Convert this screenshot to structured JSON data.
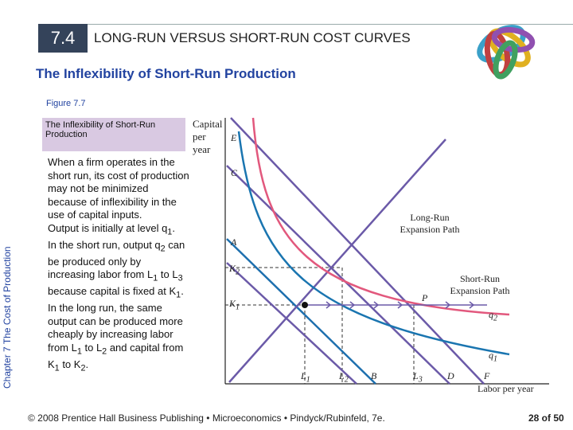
{
  "header": {
    "section": "7.4",
    "title": "LONG-RUN VERSUS SHORT-RUN COST CURVES"
  },
  "subtitle": "The Inflexibility of Short-Run Production",
  "side_label": "Chapter 7  The Cost of Production",
  "figure": {
    "label": "Figure 7.7",
    "caption": "The Inflexibility of Short-Run Production",
    "body": [
      [
        {
          "text": "When a firm operates in the short run, its cost of production may not be minimized because of inflexibility in the use of capital inputs."
        }
      ],
      [
        {
          "text": "Output is initially at level q"
        },
        {
          "sub": "1"
        },
        {
          "text": "."
        }
      ],
      [
        {
          "text": "In the short run, output q"
        },
        {
          "sub": "2"
        },
        {
          "text": " can be produced only by increasing labor from L"
        },
        {
          "sub": "1"
        },
        {
          "text": " to L"
        },
        {
          "sub": "3"
        },
        {
          "text": " because capital is fixed at K"
        },
        {
          "sub": "1"
        },
        {
          "text": "."
        }
      ],
      [
        {
          "text": "In the long run, the same output can be produced more cheaply by increasing labor from L"
        },
        {
          "sub": "1"
        },
        {
          "text": " to L"
        },
        {
          "sub": "2"
        },
        {
          "text": " and capital from K"
        },
        {
          "sub": "1"
        },
        {
          "text": " to K"
        },
        {
          "sub": "2"
        },
        {
          "text": "."
        }
      ]
    ],
    "diagram": {
      "y_axis": "Capital per year",
      "x_axis": "Labor per year",
      "long_run": "Long-Run Expansion Path",
      "short_run": "Short-Run Expansion Path",
      "labels": [
        {
          "main": "E"
        },
        {
          "main": "C"
        },
        {
          "main": "A"
        },
        {
          "main": "K",
          "sub": "2"
        },
        {
          "main": "K",
          "sub": "1"
        },
        {
          "main": "L",
          "sub": "1"
        },
        {
          "main": "L",
          "sub": "2"
        },
        {
          "main": "B"
        },
        {
          "main": "L",
          "sub": "3"
        },
        {
          "main": "D"
        },
        {
          "main": "F"
        },
        {
          "main": "P"
        },
        {
          "main": "q",
          "sub": "2"
        },
        {
          "main": "q",
          "sub": "1"
        }
      ]
    }
  },
  "footer": {
    "credit": "© 2008 Prentice Hall Business Publishing  •  Microeconomics  •  Pindyck/Rubinfeld, 7e.",
    "page": "28 of 50"
  }
}
